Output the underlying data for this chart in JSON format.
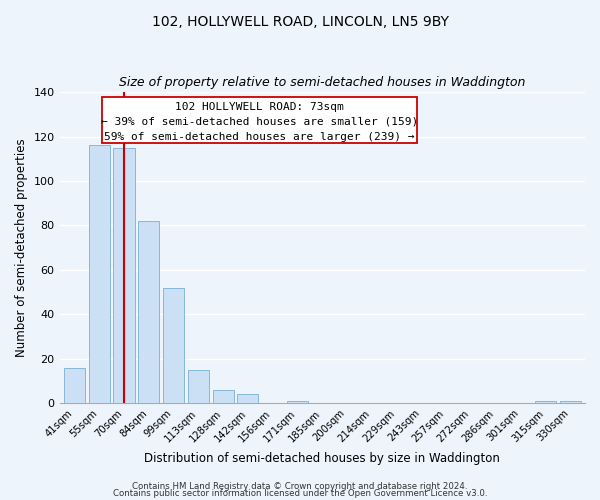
{
  "title": "102, HOLLYWELL ROAD, LINCOLN, LN5 9BY",
  "subtitle": "Size of property relative to semi-detached houses in Waddington",
  "xlabel": "Distribution of semi-detached houses by size in Waddington",
  "ylabel": "Number of semi-detached properties",
  "bar_labels": [
    "41sqm",
    "55sqm",
    "70sqm",
    "84sqm",
    "99sqm",
    "113sqm",
    "128sqm",
    "142sqm",
    "156sqm",
    "171sqm",
    "185sqm",
    "200sqm",
    "214sqm",
    "229sqm",
    "243sqm",
    "257sqm",
    "272sqm",
    "286sqm",
    "301sqm",
    "315sqm",
    "330sqm"
  ],
  "bar_values": [
    16,
    116,
    115,
    82,
    52,
    15,
    6,
    4,
    0,
    1,
    0,
    0,
    0,
    0,
    0,
    0,
    0,
    0,
    0,
    1,
    1
  ],
  "bar_color": "#cce0f5",
  "bar_edge_color": "#7bafd4",
  "vline_bar_index": 2,
  "vline_color": "#cc0000",
  "ylim": [
    0,
    140
  ],
  "yticks": [
    0,
    20,
    40,
    60,
    80,
    100,
    120,
    140
  ],
  "annotation_title": "102 HOLLYWELL ROAD: 73sqm",
  "annotation_line1": "← 39% of semi-detached houses are smaller (159)",
  "annotation_line2": "59% of semi-detached houses are larger (239) →",
  "footer1": "Contains HM Land Registry data © Crown copyright and database right 2024.",
  "footer2": "Contains public sector information licensed under the Open Government Licence v3.0.",
  "background_color": "#eef4fb",
  "plot_bg_color": "#eef4fb",
  "grid_color": "#ffffff",
  "title_fontsize": 10,
  "subtitle_fontsize": 9
}
